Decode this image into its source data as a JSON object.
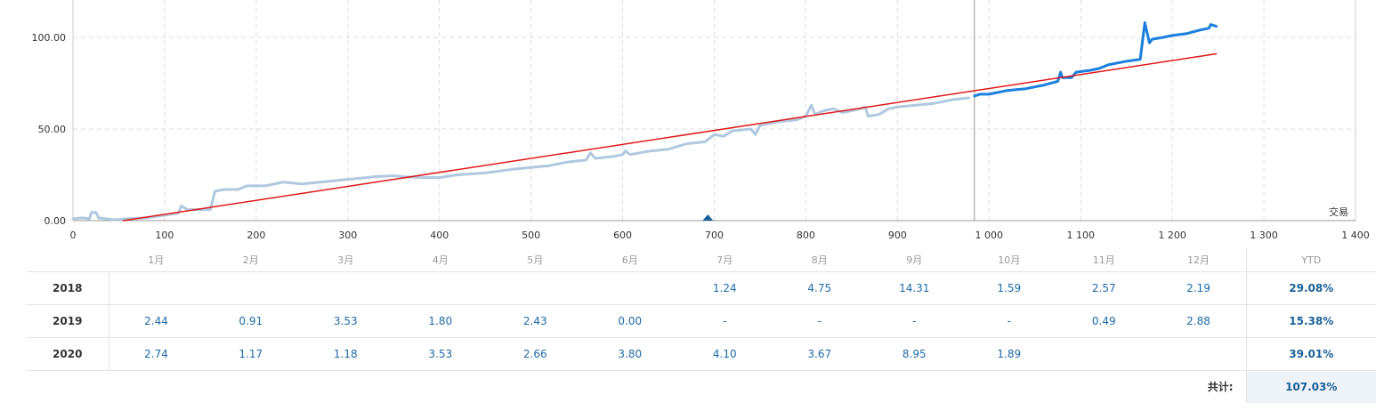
{
  "chart_data": {
    "type": "line",
    "xlabel": "交易",
    "ylabel": "",
    "xlim": [
      0,
      1400
    ],
    "ylim": [
      0,
      120
    ],
    "x_ticks": [
      "0",
      "100",
      "200",
      "300",
      "400",
      "500",
      "600",
      "700",
      "800",
      "900",
      "1 000",
      "1 100",
      "1 200",
      "1 300",
      "1 400"
    ],
    "y_ticks": [
      "0.00",
      "50.00",
      "100.00"
    ],
    "grid": true,
    "vertical_marker_x": 984,
    "triangle_marker_x": 693,
    "series": [
      {
        "color": "#b0c8e0",
        "points": [
          [
            0,
            1
          ],
          [
            10,
            1.5
          ],
          [
            18,
            1
          ],
          [
            20,
            4.5
          ],
          [
            25,
            4.5
          ],
          [
            28,
            1.5
          ],
          [
            35,
            1
          ],
          [
            45,
            0.5
          ],
          [
            60,
            1
          ],
          [
            80,
            1.5
          ],
          [
            100,
            3
          ],
          [
            115,
            4
          ],
          [
            118,
            8
          ],
          [
            125,
            6
          ],
          [
            140,
            6
          ],
          [
            150,
            6
          ],
          [
            155,
            16
          ],
          [
            165,
            17
          ],
          [
            180,
            17
          ],
          [
            190,
            19
          ],
          [
            210,
            19
          ],
          [
            230,
            21
          ],
          [
            250,
            20
          ],
          [
            270,
            21
          ],
          [
            290,
            22
          ],
          [
            310,
            23
          ],
          [
            330,
            24
          ],
          [
            350,
            24.5
          ],
          [
            360,
            24
          ],
          [
            380,
            23.5
          ],
          [
            400,
            23.5
          ],
          [
            420,
            25
          ],
          [
            450,
            26
          ],
          [
            480,
            28
          ],
          [
            500,
            29
          ],
          [
            520,
            30
          ],
          [
            540,
            32
          ],
          [
            560,
            33
          ],
          [
            565,
            37
          ],
          [
            570,
            34
          ],
          [
            590,
            35
          ],
          [
            600,
            36
          ],
          [
            603,
            38
          ],
          [
            608,
            36
          ],
          [
            630,
            38
          ],
          [
            650,
            39
          ],
          [
            670,
            42
          ],
          [
            690,
            43
          ],
          [
            700,
            47
          ],
          [
            710,
            46
          ],
          [
            720,
            49
          ],
          [
            740,
            50
          ],
          [
            745,
            47
          ],
          [
            750,
            52
          ],
          [
            770,
            54
          ],
          [
            790,
            55
          ],
          [
            800,
            57
          ],
          [
            806,
            63
          ],
          [
            810,
            58
          ],
          [
            820,
            60
          ],
          [
            830,
            61
          ],
          [
            840,
            59
          ],
          [
            860,
            61
          ],
          [
            865,
            62
          ],
          [
            868,
            57
          ],
          [
            880,
            58
          ],
          [
            890,
            61
          ],
          [
            900,
            62
          ],
          [
            920,
            63
          ],
          [
            940,
            64
          ],
          [
            960,
            66
          ],
          [
            978,
            67
          ]
        ]
      },
      {
        "color": "#1a7fde",
        "points": [
          [
            984,
            68
          ],
          [
            990,
            69
          ],
          [
            1000,
            69
          ],
          [
            1020,
            71
          ],
          [
            1040,
            72
          ],
          [
            1060,
            74
          ],
          [
            1075,
            76
          ],
          [
            1078,
            81
          ],
          [
            1080,
            78
          ],
          [
            1090,
            78
          ],
          [
            1095,
            81
          ],
          [
            1110,
            82
          ],
          [
            1120,
            83
          ],
          [
            1130,
            85
          ],
          [
            1140,
            86
          ],
          [
            1150,
            87
          ],
          [
            1165,
            88
          ],
          [
            1170,
            108
          ],
          [
            1175,
            97
          ],
          [
            1178,
            99
          ],
          [
            1190,
            100
          ],
          [
            1200,
            101
          ],
          [
            1215,
            102
          ],
          [
            1230,
            104
          ],
          [
            1240,
            105
          ],
          [
            1242,
            107
          ],
          [
            1248,
            106
          ]
        ]
      },
      {
        "color": "#e01818",
        "points": [
          [
            55,
            0
          ],
          [
            1248,
            91
          ]
        ]
      }
    ]
  },
  "table": {
    "months": [
      "1月",
      "2月",
      "3月",
      "4月",
      "5月",
      "6月",
      "7月",
      "8月",
      "9月",
      "10月",
      "11月",
      "12月"
    ],
    "ytd_header": "YTD",
    "rows": [
      {
        "year": "2018",
        "values": [
          "",
          "",
          "",
          "",
          "",
          "",
          "1.24",
          "4.75",
          "14.31",
          "1.59",
          "2.57",
          "2.19"
        ],
        "ytd": "29.08%"
      },
      {
        "year": "2019",
        "values": [
          "2.44",
          "0.91",
          "3.53",
          "1.80",
          "2.43",
          "0.00",
          "-",
          "-",
          "-",
          "-",
          "0.49",
          "2.88"
        ],
        "ytd": "15.38%"
      },
      {
        "year": "2020",
        "values": [
          "2.74",
          "1.17",
          "1.18",
          "3.53",
          "2.66",
          "3.80",
          "4.10",
          "3.67",
          "8.95",
          "1.89",
          "",
          ""
        ],
        "ytd": "39.01%"
      }
    ],
    "total_label": "共计:",
    "total_value": "107.03%"
  }
}
